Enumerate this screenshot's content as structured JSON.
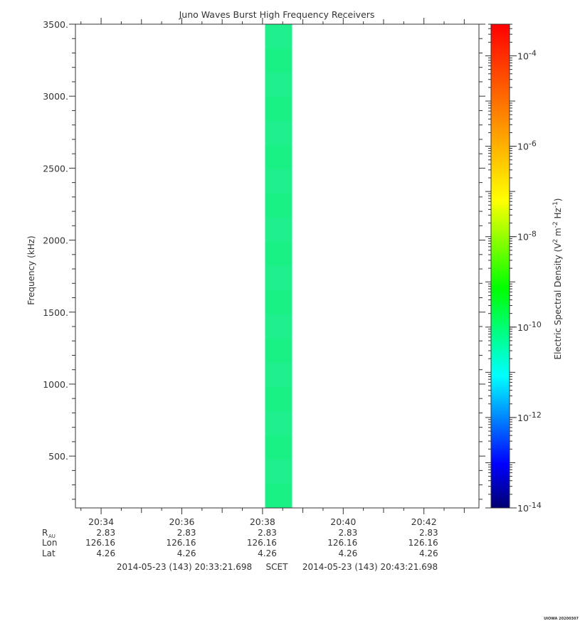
{
  "chart_data": {
    "type": "heatmap",
    "title": "Juno Waves Burst High Frequency Receivers",
    "ylabel": "Frequency (kHz)",
    "ylim": [
      140,
      3500
    ],
    "yticks": [
      500,
      1000,
      1500,
      2000,
      2500,
      3000,
      3500
    ],
    "ytick_labels": [
      "500.",
      "1000.",
      "1500.",
      "2000.",
      "2500.",
      "3000.",
      "3500."
    ],
    "xlim_minutes": [
      0,
      10
    ],
    "xticks_minutes": [
      0.6363,
      2.6363,
      4.6363,
      6.6363,
      8.6363
    ],
    "xtick_labels": [
      "20:34",
      "20:36",
      "20:38",
      "20:40",
      "20:42"
    ],
    "ephemeris": {
      "labels": {
        "r": "R",
        "r_sub": "AU",
        "lon": "Lon",
        "lat": "Lat"
      },
      "r_values": [
        "2.83",
        "2.83",
        "2.83",
        "2.83",
        "2.83"
      ],
      "lon_values": [
        "126.16",
        "126.16",
        "126.16",
        "126.16",
        "126.16"
      ],
      "lat_values": [
        "4.26",
        "4.26",
        "4.26",
        "4.26",
        "4.26"
      ]
    },
    "time_range": {
      "start": "2014-05-23 (143) 20:33:21.698",
      "label": "SCET",
      "end": "2014-05-23 (143) 20:43:21.698"
    },
    "data_block": {
      "t_start_minutes": 4.7,
      "t_end_minutes": 5.37,
      "f_min": 140,
      "f_max": 3500,
      "spectral_density": 1e-10,
      "color": "#1ef08a"
    },
    "colorbar": {
      "label": "Electric Spectral Density (V",
      "label_sup1": "2",
      "label_mid": " m",
      "label_sup2": "-2",
      "label_mid2": " Hz",
      "label_sup3": "-1",
      "label_end": ")",
      "log_min": -14,
      "log_max": -3.3,
      "ticks": [
        {
          "log": -4,
          "base": "10",
          "exp": "-4"
        },
        {
          "log": -6,
          "base": "10",
          "exp": "-6"
        },
        {
          "log": -8,
          "base": "10",
          "exp": "-8"
        },
        {
          "log": -10,
          "base": "10",
          "exp": "-10"
        },
        {
          "log": -12,
          "base": "10",
          "exp": "-12"
        },
        {
          "log": -14,
          "base": "10",
          "exp": "-14"
        }
      ],
      "colors": [
        "#000070",
        "#0000ff",
        "#0080ff",
        "#00ffff",
        "#00ff80",
        "#00ff00",
        "#80ff00",
        "#ffff00",
        "#ffc000",
        "#ff8000",
        "#ff4000",
        "#ff0000"
      ]
    },
    "footer_stamp": "UIOWA 20200307"
  }
}
